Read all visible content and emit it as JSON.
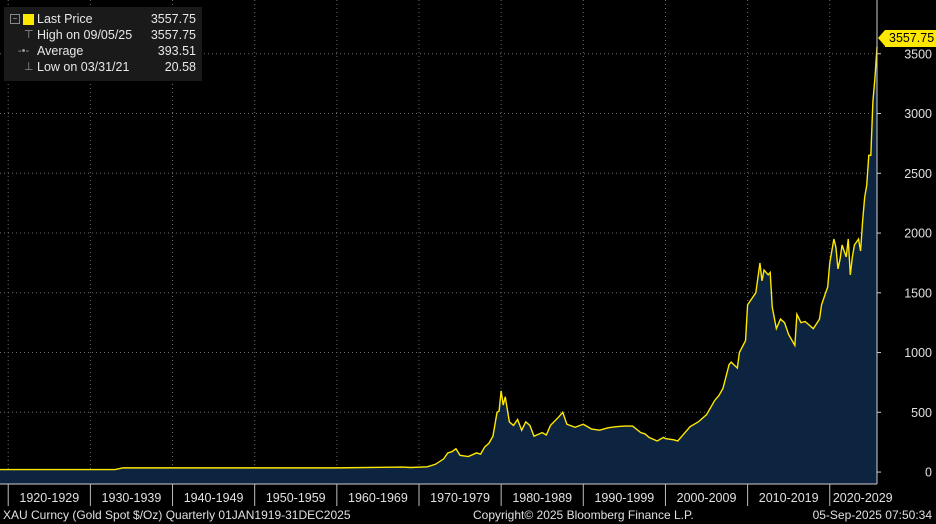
{
  "legend": {
    "last_price_label": "Last Price",
    "last_price_value": "3557.75",
    "high_label": "High on 09/05/25",
    "high_value": "3557.75",
    "average_label": "Average",
    "average_value": "393.51",
    "low_label": "Low on 03/31/21",
    "low_value": "20.58"
  },
  "last_value_tag": "3557.75",
  "footer": {
    "left": "XAU Curncy (Gold Spot  $/Oz)  Quarterly 01JAN1919-31DEC2025",
    "center": "Copyright© 2025 Bloomberg Finance L.P.",
    "right": "05-Sep-2025 07:50:34"
  },
  "colors": {
    "line": "#ffe800",
    "area": "#0d2440",
    "background": "#000000",
    "grid": "#6a6a6a"
  },
  "chart_data": {
    "type": "area",
    "x_unit": "year",
    "xlim": [
      1919,
      2025.75
    ],
    "ylim": [
      -100,
      3950
    ],
    "y_ticks": [
      0,
      500,
      1000,
      1500,
      2000,
      2500,
      3000,
      3500
    ],
    "x_tick_labels": [
      "1920-1929",
      "1930-1939",
      "1940-1949",
      "1950-1959",
      "1960-1969",
      "1970-1979",
      "1980-1989",
      "1990-1999",
      "2000-2009",
      "2010-2019",
      "2020-2029"
    ],
    "x_tick_starts": [
      1920,
      1930,
      1940,
      1950,
      1960,
      1970,
      1980,
      1990,
      2000,
      2010,
      2020
    ],
    "grid": true,
    "y_axis_position": "right",
    "series": [
      {
        "x": [
          1919,
          1933,
          1934,
          1960,
          1968,
          1969,
          1971,
          1972,
          1973,
          1973.5,
          1974,
          1974.5,
          1975,
          1976,
          1977,
          1977.5,
          1978,
          1978.5,
          1979,
          1979.5,
          1979.75,
          1980,
          1980.25,
          1980.5,
          1981,
          1981.5,
          1982,
          1982.5,
          1983,
          1983.5,
          1984,
          1985,
          1985.5,
          1986,
          1987,
          1987.5,
          1988,
          1989,
          1990,
          1991,
          1992,
          1993,
          1994,
          1995,
          1996,
          1997,
          1997.5,
          1998,
          1999,
          1999.75,
          2000,
          2001,
          2001.5,
          2002,
          2003,
          2004,
          2005,
          2006,
          2006.5,
          2007,
          2007.75,
          2008,
          2008.75,
          2009,
          2009.75,
          2010,
          2011,
          2011.5,
          2011.75,
          2012,
          2012.5,
          2012.75,
          2013,
          2013.5,
          2014,
          2014.5,
          2015,
          2015.75,
          2016,
          2016.5,
          2017,
          2018,
          2018.75,
          2019,
          2019.5,
          2019.75,
          2020,
          2020.5,
          2020.75,
          2021,
          2021.25,
          2021.5,
          2022,
          2022.25,
          2022.5,
          2022.75,
          2023,
          2023.5,
          2023.75,
          2024,
          2024.25,
          2024.5,
          2024.75,
          2025,
          2025.25,
          2025.5,
          2025.75
        ],
        "y": [
          20.67,
          20.67,
          35,
          35,
          42,
          38,
          44,
          65,
          110,
          160,
          170,
          195,
          140,
          130,
          160,
          150,
          210,
          240,
          300,
          500,
          510,
          680,
          560,
          630,
          420,
          390,
          440,
          350,
          420,
          390,
          300,
          330,
          310,
          390,
          460,
          500,
          400,
          375,
          400,
          360,
          350,
          370,
          380,
          385,
          385,
          330,
          320,
          290,
          260,
          290,
          280,
          270,
          260,
          300,
          380,
          420,
          480,
          600,
          640,
          700,
          900,
          920,
          870,
          1000,
          1100,
          1400,
          1500,
          1750,
          1600,
          1690,
          1650,
          1670,
          1380,
          1200,
          1280,
          1250,
          1150,
          1060,
          1320,
          1250,
          1260,
          1200,
          1280,
          1400,
          1500,
          1550,
          1750,
          1950,
          1880,
          1700,
          1780,
          1900,
          1800,
          1950,
          1650,
          1800,
          1900,
          1950,
          1850,
          2100,
          2300,
          2400,
          2650,
          2650,
          3100,
          3300,
          3557.75
        ]
      }
    ]
  }
}
